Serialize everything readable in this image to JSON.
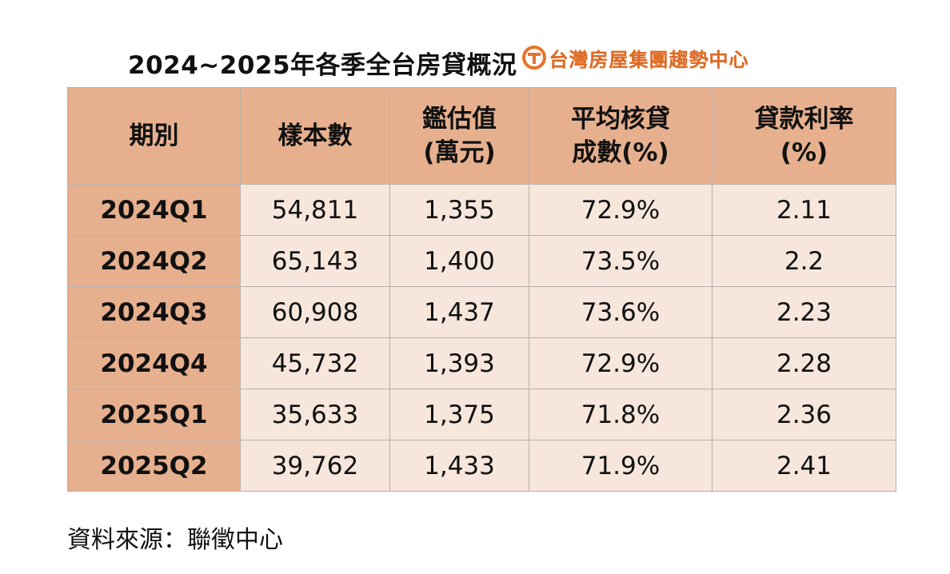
{
  "title": "2024~2025年各季全台房貸概況",
  "brand": {
    "name": "台灣房屋集團趨勢中心",
    "color": "#dd6a24",
    "icon": "taiwan-realty-logo-icon"
  },
  "table": {
    "headers": [
      {
        "line1": "期別",
        "line2": ""
      },
      {
        "line1": "樣本數",
        "line2": ""
      },
      {
        "line1": "鑑估值",
        "line2": "(萬元)"
      },
      {
        "line1": "平均核貸",
        "line2": "成數(%)"
      },
      {
        "line1": "貸款利率",
        "line2": "(%)"
      }
    ],
    "rows": [
      [
        "2024Q1",
        "54,811",
        "1,355",
        "72.9%",
        "2.11"
      ],
      [
        "2024Q2",
        "65,143",
        "1,400",
        "73.5%",
        "2.2"
      ],
      [
        "2024Q3",
        "60,908",
        "1,437",
        "73.6%",
        "2.23"
      ],
      [
        "2024Q4",
        "45,732",
        "1,393",
        "72.9%",
        "2.28"
      ],
      [
        "2025Q1",
        "35,633",
        "1,375",
        "71.8%",
        "2.36"
      ],
      [
        "2025Q2",
        "39,762",
        "1,433",
        "71.9%",
        "2.41"
      ]
    ]
  },
  "source": "資料來源：聯徵中心",
  "colors": {
    "header_bg": "#e6b08e",
    "cell_bg": "#f6e6dc",
    "border": "#b8b0aa"
  }
}
